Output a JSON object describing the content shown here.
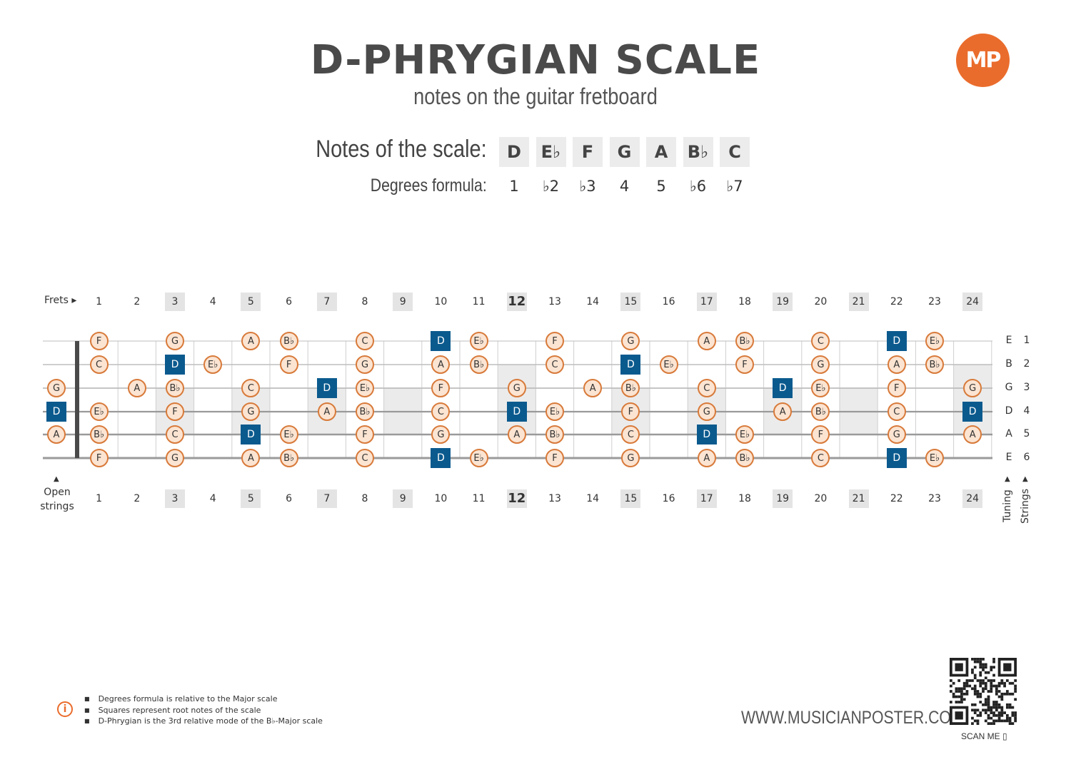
{
  "title": "D-PHRYGIAN SCALE",
  "subtitle": "notes on the guitar fretboard",
  "logo_text": "MP",
  "scale_label": "Notes of the scale:",
  "degrees_label": "Degrees formula:",
  "scale_notes": [
    "D",
    "E♭",
    "F",
    "G",
    "A",
    "B♭",
    "C"
  ],
  "degrees": [
    "1",
    "♭2",
    "♭3",
    "4",
    "5",
    "♭6",
    "♭7"
  ],
  "frets_label": "Frets",
  "fret_numbers": [
    "1",
    "2",
    "3",
    "4",
    "5",
    "6",
    "7",
    "8",
    "9",
    "10",
    "11",
    "12",
    "13",
    "14",
    "15",
    "16",
    "17",
    "18",
    "19",
    "20",
    "21",
    "22",
    "23",
    "24"
  ],
  "highlighted_frets": [
    3,
    5,
    7,
    9,
    12,
    15,
    17,
    19,
    21,
    24
  ],
  "open_strings_label": "Open strings",
  "open_strings": {
    "3": "G",
    "4": "D",
    "5": "A"
  },
  "tuning_label": "Tuning",
  "strings_label": "Strings",
  "tuning": [
    "E",
    "B",
    "G",
    "D",
    "A",
    "E"
  ],
  "string_numbers": [
    "1",
    "2",
    "3",
    "4",
    "5",
    "6"
  ],
  "root_note": "D",
  "colors": {
    "note_border": "#d87a3a",
    "note_fill": "#fbe4d2",
    "root_fill": "#0b5a8e",
    "accent": "#ea6c2c"
  },
  "fretboard": [
    {
      "string": 1,
      "notes": {
        "1": "F",
        "3": "G",
        "5": "A",
        "6": "B♭",
        "8": "C",
        "10": "D",
        "11": "E♭",
        "13": "F",
        "15": "G",
        "17": "A",
        "18": "B♭",
        "20": "C",
        "22": "D",
        "23": "E♭"
      }
    },
    {
      "string": 2,
      "notes": {
        "1": "C",
        "3": "D",
        "4": "E♭",
        "6": "F",
        "8": "G",
        "10": "A",
        "11": "B♭",
        "13": "C",
        "15": "D",
        "16": "E♭",
        "18": "F",
        "20": "G",
        "22": "A",
        "23": "B♭"
      }
    },
    {
      "string": 3,
      "notes": {
        "2": "A",
        "3": "B♭",
        "5": "C",
        "7": "D",
        "8": "E♭",
        "10": "F",
        "12": "G",
        "14": "A",
        "15": "B♭",
        "17": "C",
        "19": "D",
        "20": "E♭",
        "22": "F",
        "24": "G"
      }
    },
    {
      "string": 4,
      "notes": {
        "1": "E♭",
        "3": "F",
        "5": "G",
        "7": "A",
        "8": "B♭",
        "10": "C",
        "12": "D",
        "13": "E♭",
        "15": "F",
        "17": "G",
        "19": "A",
        "20": "B♭",
        "22": "C",
        "24": "D"
      }
    },
    {
      "string": 5,
      "notes": {
        "1": "B♭",
        "3": "C",
        "5": "D",
        "6": "E♭",
        "8": "F",
        "10": "G",
        "12": "A",
        "13": "B♭",
        "15": "C",
        "17": "D",
        "18": "E♭",
        "20": "F",
        "22": "G",
        "24": "A"
      }
    },
    {
      "string": 6,
      "notes": {
        "1": "F",
        "3": "G",
        "5": "A",
        "6": "B♭",
        "8": "C",
        "10": "D",
        "11": "E♭",
        "13": "F",
        "15": "G",
        "17": "A",
        "18": "B♭",
        "20": "C",
        "22": "D",
        "23": "E♭"
      }
    }
  ],
  "footnotes": [
    "Degrees formula is relative to the Major scale",
    "Squares represent root notes of the scale",
    "D-Phrygian is the 3rd relative mode of the B♭-Major scale"
  ],
  "info_icon": "info-icon",
  "website": "WWW.MUSICIANPOSTER.COM",
  "scan_label": "SCAN ME"
}
